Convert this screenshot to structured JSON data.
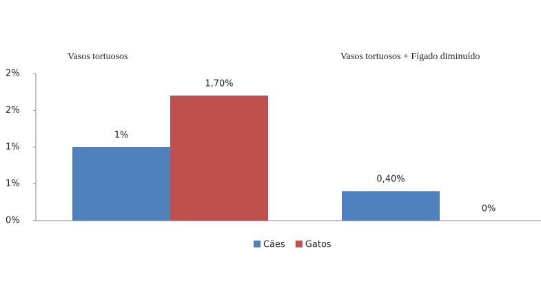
{
  "chart_data": {
    "type": "bar",
    "categories": [
      "Vasos tortuosos",
      "Vasos tortuosos + Fígado diminuído"
    ],
    "series": [
      {
        "name": "Cães",
        "color": "#4f81bd",
        "values": [
          1,
          0.4
        ],
        "value_labels": [
          "1%",
          "0,40%"
        ]
      },
      {
        "name": "Gatos",
        "color": "#c0504d",
        "values": [
          1.7,
          0
        ],
        "value_labels": [
          "1,70%",
          "0%"
        ]
      }
    ],
    "ylim": [
      0,
      2
    ],
    "yticks": [
      {
        "value": 0,
        "label": "0%"
      },
      {
        "value": 0.5,
        "label": "1%"
      },
      {
        "value": 1,
        "label": "1%"
      },
      {
        "value": 1.5,
        "label": "2%"
      },
      {
        "value": 2,
        "label": "2%"
      }
    ],
    "grid": false
  }
}
